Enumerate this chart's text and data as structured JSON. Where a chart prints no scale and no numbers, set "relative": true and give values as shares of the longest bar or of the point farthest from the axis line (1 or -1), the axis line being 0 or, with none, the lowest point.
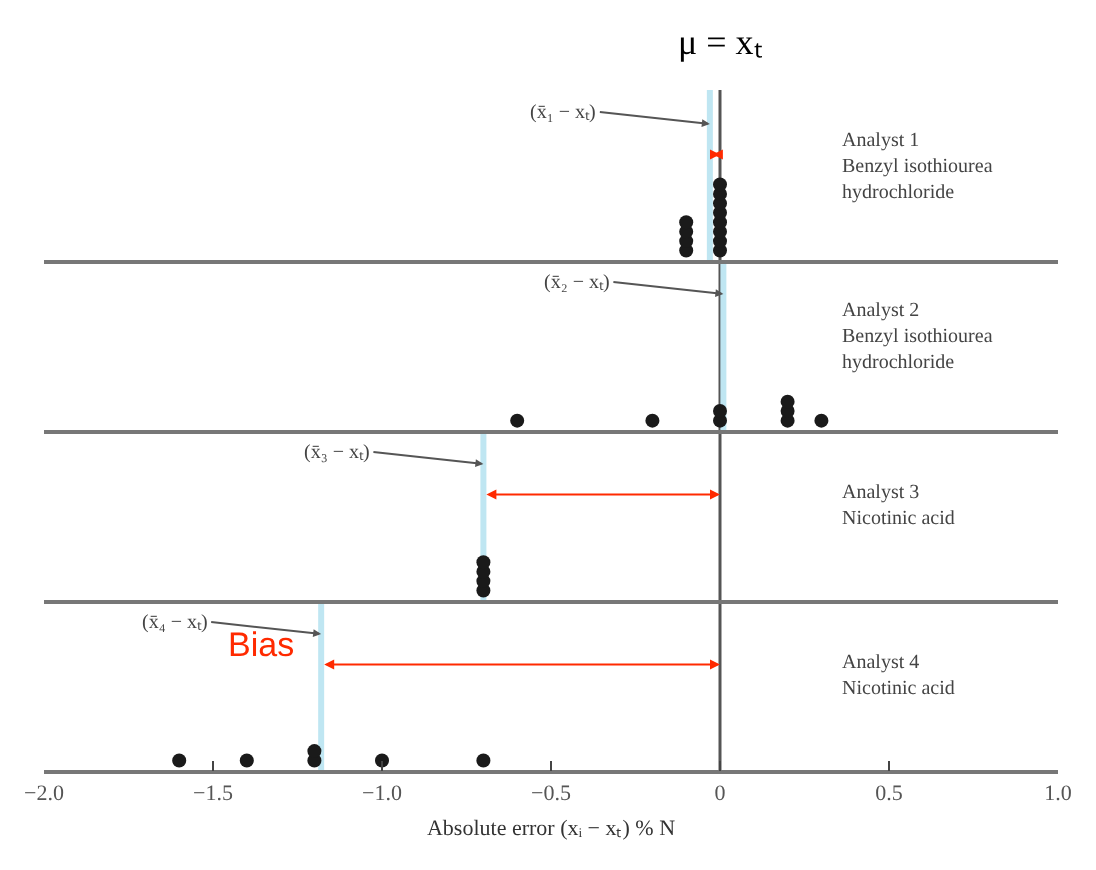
{
  "chart_data": [
    {
      "type": "scatter",
      "title": "μ = xₜ",
      "x": [
        -0.1,
        -0.1,
        -0.1,
        -0.1,
        0,
        0,
        0,
        0,
        0,
        0,
        0,
        0
      ],
      "values": [
        0.125,
        0.25,
        0.375,
        0.5,
        0.125,
        0.25,
        0.375,
        0.5,
        0.625,
        0.75,
        0.875,
        1
      ],
      "relative": true,
      "color": "#1a1a1a",
      "marker": "circle",
      "xlim": [
        -2.0,
        1.0
      ],
      "tick_labels": false,
      "grid": false,
      "annotations": [
        "Analyst 1\nBenzyl isothiourea\nhydrochloride"
      ],
      "ref_lines": [
        {
          "axis": "x",
          "value": 0,
          "color": "#555555"
        },
        {
          "axis": "x",
          "value": -0.03,
          "label": "(x̄₁ − xₜ)",
          "color": "#bfe6f2"
        }
      ]
    },
    {
      "type": "scatter",
      "x": [
        -0.6,
        -0.2,
        0,
        0,
        0.2,
        0.2,
        0.2,
        0.3
      ],
      "values": [
        0.33,
        0.33,
        0.33,
        0.67,
        0.33,
        0.67,
        1,
        0.33
      ],
      "relative": true,
      "color": "#1a1a1a",
      "marker": "circle",
      "xlim": [
        -2.0,
        1.0
      ],
      "tick_labels": false,
      "grid": false,
      "annotations": [
        "Analyst 2\nBenzyl isothiourea\nhydrochloride"
      ],
      "ref_lines": [
        {
          "axis": "x",
          "value": 0,
          "color": "#555555"
        },
        {
          "axis": "x",
          "value": 0.01,
          "label": "(x̄₂ − xₜ)",
          "color": "#bfe6f2"
        }
      ]
    },
    {
      "type": "scatter",
      "x": [
        -0.7,
        -0.7,
        -0.7,
        -0.7
      ],
      "values": [
        0.25,
        0.5,
        0.75,
        1
      ],
      "relative": true,
      "color": "#1a1a1a",
      "marker": "circle",
      "xlim": [
        -2.0,
        1.0
      ],
      "tick_labels": false,
      "grid": false,
      "annotations": [
        "Analyst 3\nNicotinic acid"
      ],
      "ref_lines": [
        {
          "axis": "x",
          "value": 0,
          "color": "#555555"
        },
        {
          "axis": "x",
          "value": -0.7,
          "label": "(x̄₃ − xₜ)",
          "color": "#bfe6f2"
        }
      ]
    },
    {
      "type": "scatter",
      "x": [
        -1.6,
        -1.4,
        -1.2,
        -1.2,
        -1.0,
        -0.7
      ],
      "values": [
        0.5,
        0.5,
        0.5,
        1,
        0.5,
        0.5
      ],
      "relative": true,
      "color": "#1a1a1a",
      "marker": "circle",
      "xlim": [
        -2.0,
        1.0
      ],
      "tick_labels": "x",
      "grid": false,
      "xlabel": "Absolute error (xᵢ − xₜ) % N",
      "xticks": [
        {
          "value": -2.0,
          "label": "−2.0"
        },
        {
          "value": -1.5,
          "label": "−1.5"
        },
        {
          "value": -1.0,
          "label": "−1.0"
        },
        {
          "value": -0.5,
          "label": "−0.5"
        },
        0,
        0.5,
        {
          "value": 1.0,
          "label": "1.0"
        }
      ],
      "annotations": [
        "Analyst 4\nNicotinic acid",
        {
          "text": "Bias",
          "x": -1.18
        }
      ],
      "ref_lines": [
        {
          "axis": "x",
          "value": 0,
          "color": "#555555"
        },
        {
          "axis": "x",
          "value": -1.18,
          "label": "(x̄₄ − xₜ)",
          "color": "#bfe6f2"
        }
      ]
    }
  ]
}
